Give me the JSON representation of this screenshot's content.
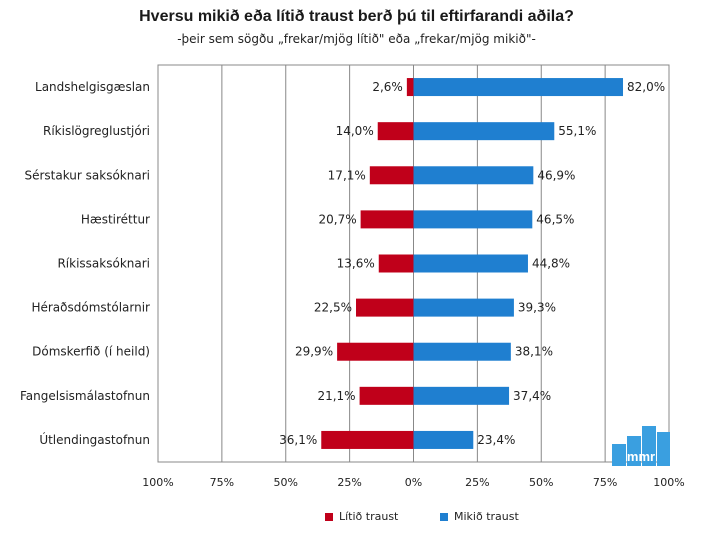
{
  "chart_data": {
    "type": "bar",
    "orientation": "horizontal-diverging",
    "title": "Hversu mikið eða lítið traust berð þú til eftirfarandi aðila?",
    "subtitle": "-þeir sem sögðu „frekar/mjög lítið\" eða „frekar/mjög mikið\"-",
    "categories": [
      "Landshelgisgæslan",
      "Ríkislögreglustjóri",
      "Sérstakur saksóknari",
      "Hæstiréttur",
      "Ríkissaksóknari",
      "Héraðsdómstólarnir",
      "Dómskerfið (í heild)",
      "Fangelsismálastofnun",
      "Útlendingastofnun"
    ],
    "series": [
      {
        "name": "Lítið traust",
        "color": "#c0001a",
        "values": [
          2.6,
          14.0,
          17.1,
          20.7,
          13.6,
          22.5,
          29.9,
          21.1,
          36.1
        ],
        "labels": [
          "2,6%",
          "14,0%",
          "17,1%",
          "20,7%",
          "13,6%",
          "22,5%",
          "29,9%",
          "21,1%",
          "36,1%"
        ]
      },
      {
        "name": "Mikið traust",
        "color": "#1f7fd0",
        "values": [
          82.0,
          55.1,
          46.9,
          46.5,
          44.8,
          39.3,
          38.1,
          37.4,
          23.4
        ],
        "labels": [
          "82,0%",
          "55,1%",
          "46,9%",
          "46,5%",
          "44,8%",
          "39,3%",
          "38,1%",
          "37,4%",
          "23,4%"
        ]
      }
    ],
    "xticks": [
      -100,
      -75,
      -50,
      -25,
      0,
      25,
      50,
      75,
      100
    ],
    "xtick_labels": [
      "100%",
      "75%",
      "50%",
      "25%",
      "0%",
      "25%",
      "50%",
      "75%",
      "100%"
    ],
    "xlim": [
      -100,
      100
    ],
    "grid": true,
    "legend_position": "bottom"
  },
  "logo": {
    "text": "mmr",
    "color": "#3a9fe0"
  }
}
